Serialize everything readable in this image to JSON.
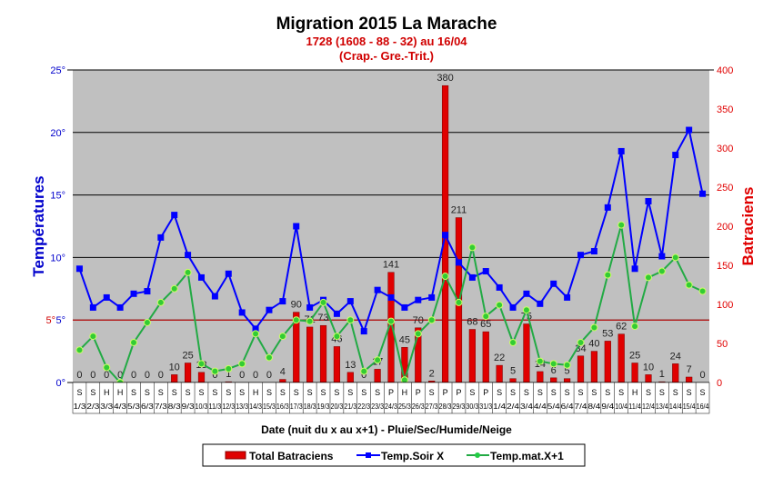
{
  "chart_data": {
    "type": "bar+line",
    "title": "Migration 2015 La Marache",
    "subtitle": [
      "1728 (1608 - 88 - 32) au 16/04",
      "(Crap.- Gre.-Trit.)"
    ],
    "xlabel": "Date (nuit du x au x+1) - Pluie/Sec/Humide/Neige",
    "ylabel_left": "Températures",
    "ylabel_right": "Batraciens",
    "ylim_left": [
      0,
      25
    ],
    "ylim_right": [
      0,
      400
    ],
    "yticks_left": [
      "0°",
      "5°",
      "10°",
      "15°",
      "20°",
      "25°"
    ],
    "yticks_right": [
      "0",
      "50",
      "100",
      "150",
      "200",
      "250",
      "300",
      "350",
      "400"
    ],
    "reference_line": {
      "value": 5,
      "label": "5°",
      "color": "#d00000"
    },
    "grid": true,
    "plot_background": "#c0c0c0",
    "legend_placement": "bottom",
    "categories": [
      "1/3",
      "2/3",
      "3/3",
      "4/3",
      "5/3",
      "6/3",
      "7/3",
      "8/3",
      "9/3",
      "10/3",
      "11/3",
      "12/3",
      "13/3",
      "14/3",
      "15/3",
      "16/3",
      "17/3",
      "18/3",
      "19/3",
      "20/3",
      "21/3",
      "22/3",
      "23/3",
      "24/3",
      "25/3",
      "26/3",
      "27/3",
      "28/3",
      "29/3",
      "30/3",
      "31/3",
      "1/4",
      "2/4",
      "3/4",
      "4/4",
      "5/4",
      "6/4",
      "7/4",
      "8/4",
      "9/4",
      "10/4",
      "11/4",
      "12/4",
      "13/4",
      "14/4",
      "15/4",
      "16/4"
    ],
    "weather": [
      "S",
      "S",
      "H",
      "H",
      "S",
      "S",
      "S",
      "S",
      "S",
      "S",
      "S",
      "S",
      "S",
      "H",
      "S",
      "S",
      "S",
      "S",
      "S",
      "S",
      "S",
      "S",
      "S",
      "P",
      "H",
      "P",
      "S",
      "P",
      "P",
      "S",
      "P",
      "S",
      "S",
      "S",
      "S",
      "S",
      "S",
      "S",
      "S",
      "S",
      "S",
      "H",
      "S",
      "S",
      "S",
      "S",
      "S"
    ],
    "series": [
      {
        "name": "Total Batraciens",
        "type": "bar",
        "axis": "right",
        "color": "#e00000",
        "values": [
          0,
          0,
          0,
          0,
          0,
          0,
          0,
          10,
          25,
          13,
          0,
          1,
          0,
          0,
          0,
          4,
          90,
          71,
          73,
          46,
          13,
          0,
          17,
          141,
          45,
          70,
          2,
          380,
          211,
          68,
          65,
          22,
          5,
          75,
          14,
          6,
          5,
          34,
          40,
          53,
          62,
          25,
          10,
          1,
          24,
          7,
          0
        ]
      },
      {
        "name": "Temp.Soir X",
        "type": "line",
        "axis": "left",
        "color": "#0000ff",
        "marker": "square",
        "values": [
          9.1,
          6.0,
          6.8,
          6.0,
          7.1,
          7.3,
          11.6,
          13.4,
          10.2,
          8.4,
          6.9,
          8.7,
          5.6,
          4.3,
          5.8,
          6.5,
          12.5,
          6.0,
          6.6,
          5.5,
          6.5,
          4.1,
          7.4,
          6.8,
          6.0,
          6.6,
          6.8,
          11.8,
          9.6,
          8.4,
          8.9,
          7.6,
          6.0,
          7.1,
          6.3,
          7.9,
          6.8,
          10.2,
          10.5,
          14.0,
          18.5,
          9.1,
          14.5,
          10.1,
          18.2,
          20.2,
          15.1
        ]
      },
      {
        "name": "Temp.mat.X+1",
        "type": "line",
        "axis": "left",
        "color": "#22aa44",
        "marker": "circle",
        "values": [
          2.6,
          3.7,
          1.2,
          0,
          3.2,
          4.8,
          6.4,
          7.5,
          8.8,
          1.5,
          0.9,
          1.1,
          1.5,
          3.9,
          2.0,
          3.7,
          5.0,
          4.9,
          6.4,
          3.7,
          5.0,
          0.9,
          1.8,
          4.9,
          0.2,
          3.9,
          5.0,
          8.5,
          6.4,
          10.8,
          5.3,
          6.2,
          3.2,
          5.8,
          1.7,
          1.5,
          1.4,
          3.2,
          4.4,
          8.6,
          12.6,
          4.5,
          8.4,
          8.9,
          10.0,
          7.8,
          7.3
        ]
      }
    ]
  }
}
